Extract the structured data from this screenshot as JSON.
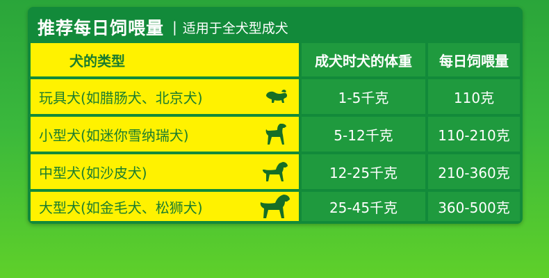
{
  "header": {
    "title": "推荐每日饲喂量",
    "separator": "|",
    "subtitle": "适用于全犬型成犬"
  },
  "table": {
    "columns": [
      "犬的类型",
      "成犬时犬的体重",
      "每日饲喂量"
    ],
    "rows": [
      {
        "type": "玩具犬(如腊肠犬、北京犬)",
        "weight": "1-5千克",
        "feed": "110克",
        "icon": "small-dog-icon"
      },
      {
        "type": "小型犬(如迷你雪纳瑞犬)",
        "weight": "5-12千克",
        "feed": "110-210克",
        "icon": "schnauzer-dog-icon"
      },
      {
        "type": "中型犬(如沙皮犬)",
        "weight": "12-25千克",
        "feed": "210-360克",
        "icon": "medium-dog-icon"
      },
      {
        "type": "大型犬(如金毛犬、松狮犬)",
        "weight": "25-45千克",
        "feed": "360-500克",
        "icon": "large-dog-icon"
      }
    ]
  },
  "colors": {
    "background": "#3ab83c",
    "panel": "#128a3a",
    "yellow": "#fff200",
    "cell_green": "#1f9a3e",
    "text_green": "#1b7d2e"
  }
}
